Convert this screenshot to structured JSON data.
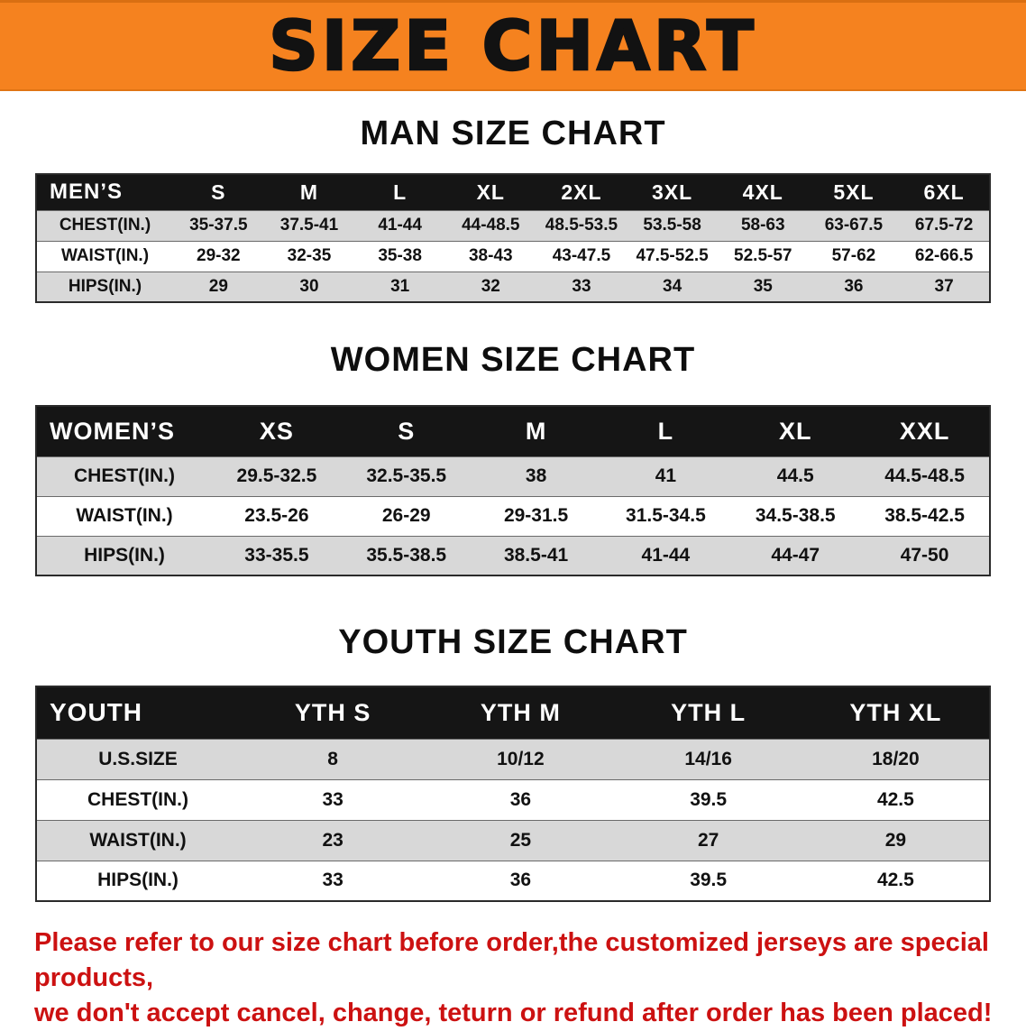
{
  "banner": {
    "title": "SIZE CHART",
    "background_color": "#f5821f"
  },
  "chart_data": [
    {
      "type": "table",
      "title": "MAN SIZE CHART",
      "corner_label": "MEN’S",
      "columns": [
        "S",
        "M",
        "L",
        "XL",
        "2XL",
        "3XL",
        "4XL",
        "5XL",
        "6XL"
      ],
      "rows": [
        {
          "label": "CHEST(IN.)",
          "values": [
            "35-37.5",
            "37.5-41",
            "41-44",
            "44-48.5",
            "48.5-53.5",
            "53.5-58",
            "58-63",
            "63-67.5",
            "67.5-72"
          ]
        },
        {
          "label": "WAIST(IN.)",
          "values": [
            "29-32",
            "32-35",
            "35-38",
            "38-43",
            "43-47.5",
            "47.5-52.5",
            "52.5-57",
            "57-62",
            "62-66.5"
          ]
        },
        {
          "label": "HIPS(IN.)",
          "values": [
            "29",
            "30",
            "31",
            "32",
            "33",
            "34",
            "35",
            "36",
            "37"
          ]
        }
      ]
    },
    {
      "type": "table",
      "title": "WOMEN SIZE CHART",
      "corner_label": "WOMEN’S",
      "columns": [
        "XS",
        "S",
        "M",
        "L",
        "XL",
        "XXL"
      ],
      "rows": [
        {
          "label": "CHEST(IN.)",
          "values": [
            "29.5-32.5",
            "32.5-35.5",
            "38",
            "41",
            "44.5",
            "44.5-48.5"
          ]
        },
        {
          "label": "WAIST(IN.)",
          "values": [
            "23.5-26",
            "26-29",
            "29-31.5",
            "31.5-34.5",
            "34.5-38.5",
            "38.5-42.5"
          ]
        },
        {
          "label": "HIPS(IN.)",
          "values": [
            "33-35.5",
            "35.5-38.5",
            "38.5-41",
            "41-44",
            "44-47",
            "47-50"
          ]
        }
      ]
    },
    {
      "type": "table",
      "title": "YOUTH SIZE CHART",
      "corner_label": "YOUTH",
      "columns": [
        "YTH S",
        "YTH M",
        "YTH L",
        "YTH XL"
      ],
      "rows": [
        {
          "label": "U.S.SIZE",
          "values": [
            "8",
            "10/12",
            "14/16",
            "18/20"
          ]
        },
        {
          "label": "CHEST(IN.)",
          "values": [
            "33",
            "36",
            "39.5",
            "42.5"
          ]
        },
        {
          "label": "WAIST(IN.)",
          "values": [
            "23",
            "25",
            "27",
            "29"
          ]
        },
        {
          "label": "HIPS(IN.)",
          "values": [
            "33",
            "36",
            "39.5",
            "42.5"
          ]
        }
      ]
    }
  ],
  "footer": {
    "text_color": "#cc1111",
    "lines": [
      "Please refer to our size chart before order,the customized jerseys are special products,",
      "we don't accept cancel, change, teturn or refund after order has been placed!"
    ]
  }
}
